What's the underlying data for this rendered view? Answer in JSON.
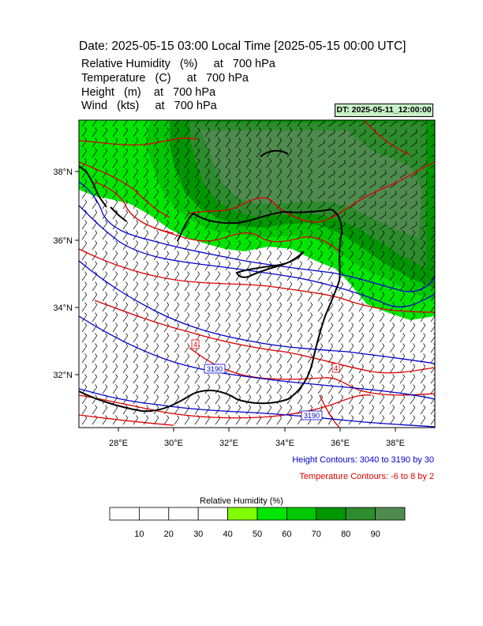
{
  "header": {
    "title": "Date: 2025-05-15  03:00 Local Time [2025-05-15  00:00 UTC]",
    "fields": [
      {
        "label": "Relative Humidity",
        "unit": "(%)",
        "level": "at   700 hPa"
      },
      {
        "label": "Temperature",
        "unit": "(C)",
        "level": "at   700 hPa"
      },
      {
        "label": "Height",
        "unit": "(m)",
        "level": "at   700 hPa"
      },
      {
        "label": "Wind",
        "unit": "(kts)",
        "level": "at   700 hPa"
      }
    ],
    "dt_badge": "DT: 2025-05-11_12:00:00"
  },
  "map": {
    "lon_ticks": [
      "28°E",
      "30°E",
      "32°E",
      "34°E",
      "36°E",
      "38°E"
    ],
    "lat_ticks": [
      "38°N",
      "36°N",
      "34°N",
      "32°N"
    ],
    "contour_labels": {
      "height": "3190",
      "height2": "3190",
      "temp1": "4",
      "temp2": "4"
    },
    "colors": {
      "height": "#0000cc",
      "temperature": "#dd0000",
      "coast": "#000000",
      "barbs": "#000000"
    }
  },
  "legend_notes": {
    "height": "Height Contours: 3040 to 3190 by 30",
    "temperature": "Temperature Contours: -6 to 8 by 2"
  },
  "colorbar": {
    "title": "Relative Humidity  (%)",
    "labels": [
      "10",
      "20",
      "30",
      "40",
      "50",
      "60",
      "70",
      "80",
      "90"
    ],
    "colors": [
      "#ffffff",
      "#ffffff",
      "#ffffff",
      "#ffffff",
      "#80ff00",
      "#00e600",
      "#00c800",
      "#009600",
      "#2d8c2d",
      "#4f8a4f"
    ]
  }
}
